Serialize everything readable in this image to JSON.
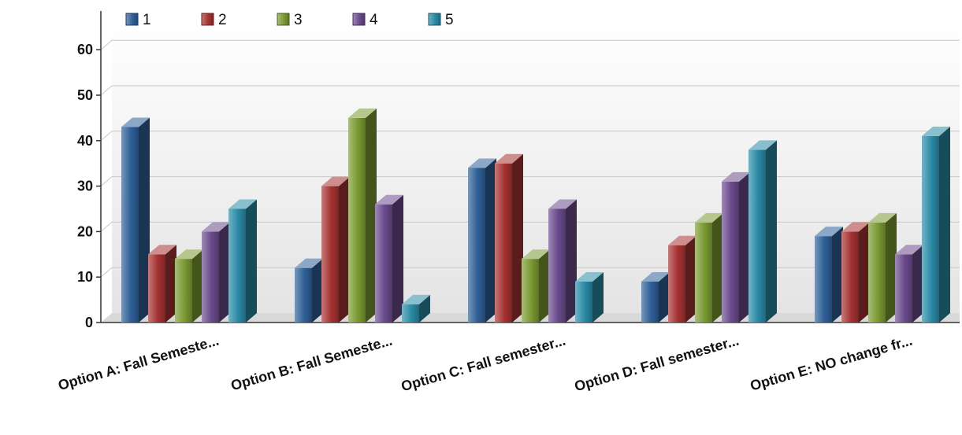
{
  "chart_data": {
    "type": "bar",
    "title": "",
    "xlabel": "",
    "ylabel": "",
    "ylim": [
      0,
      65
    ],
    "yticks": [
      0,
      10,
      20,
      30,
      40,
      50,
      60
    ],
    "grid": true,
    "legend_position": "top-left",
    "categories": [
      "Option A: Fall Semeste...",
      "Option B: Fall Semeste...",
      "Option C: Fall semester...",
      "Option D: Fall semester...",
      "Option E: NO change fr..."
    ],
    "series": [
      {
        "name": "1",
        "color": "#2f5f97",
        "values": [
          43,
          12,
          34,
          9,
          19
        ]
      },
      {
        "name": "2",
        "color": "#a63232",
        "values": [
          15,
          30,
          35,
          17,
          20
        ]
      },
      {
        "name": "3",
        "color": "#7b9a32",
        "values": [
          14,
          45,
          14,
          22,
          22
        ]
      },
      {
        "name": "4",
        "color": "#6a4a8c",
        "values": [
          20,
          26,
          25,
          31,
          15
        ]
      },
      {
        "name": "5",
        "color": "#2a8aa6",
        "values": [
          25,
          4,
          9,
          38,
          41
        ]
      }
    ]
  }
}
